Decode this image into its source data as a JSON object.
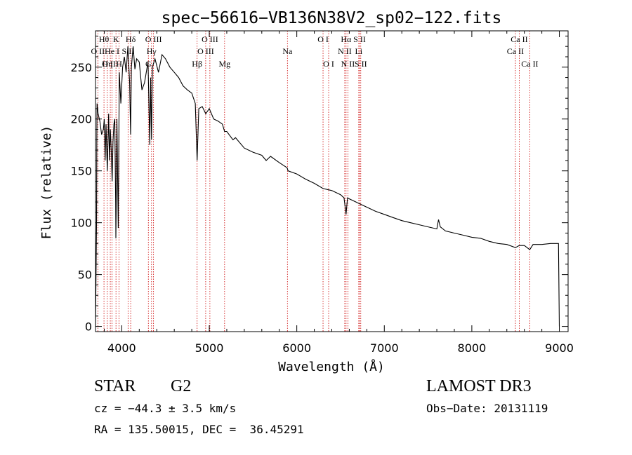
{
  "chart_data": {
    "type": "line",
    "title": "spec−56616−VB136N38V2_sp02−122.fits",
    "xlabel": "Wavelength (Å)",
    "ylabel": "Flux (relative)",
    "xlim": [
      3700,
      9100
    ],
    "ylim": [
      -5,
      285
    ],
    "xticks": [
      4000,
      5000,
      6000,
      7000,
      8000,
      9000
    ],
    "xtick_labels": [
      "4000",
      "5000",
      "6000",
      "7000",
      "8000",
      "9000"
    ],
    "yticks": [
      0,
      50,
      100,
      150,
      200,
      250
    ],
    "ytick_labels": [
      "0",
      "50",
      "100",
      "150",
      "200",
      "250"
    ],
    "series": [
      {
        "name": "flux",
        "x": [
          3700,
          3712,
          3715,
          3718,
          3730,
          3750,
          3770,
          3790,
          3800,
          3810,
          3820,
          3835,
          3850,
          3860,
          3870,
          3880,
          3890,
          3900,
          3910,
          3920,
          3930,
          3933,
          3936,
          3945,
          3960,
          3965,
          3968,
          3972,
          3990,
          4010,
          4030,
          4050,
          4070,
          4090,
          4101,
          4110,
          4130,
          4150,
          4170,
          4200,
          4230,
          4260,
          4300,
          4320,
          4330,
          4340,
          4350,
          4380,
          4420,
          4460,
          4500,
          4550,
          4600,
          4650,
          4700,
          4750,
          4800,
          4840,
          4861,
          4880,
          4920,
          4960,
          5000,
          5050,
          5100,
          5150,
          5175,
          5200,
          5270,
          5300,
          5400,
          5500,
          5600,
          5650,
          5700,
          5800,
          5890,
          5900,
          6000,
          6100,
          6200,
          6300,
          6400,
          6500,
          6540,
          6563,
          6580,
          6600,
          6700,
          6800,
          6900,
          7000,
          7100,
          7200,
          7300,
          7400,
          7500,
          7600,
          7620,
          7640,
          7700,
          7800,
          7900,
          8000,
          8100,
          8200,
          8300,
          8400,
          8498,
          8542,
          8600,
          8662,
          8700,
          8800,
          8900,
          8990,
          9000
        ],
        "y": [
          0,
          100,
          180,
          215,
          205,
          198,
          185,
          190,
          200,
          160,
          195,
          150,
          205,
          160,
          190,
          170,
          140,
          178,
          195,
          200,
          120,
          85,
          110,
          200,
          95,
          155,
          195,
          245,
          215,
          250,
          260,
          245,
          270,
          235,
          185,
          250,
          270,
          248,
          258,
          255,
          228,
          235,
          255,
          175,
          240,
          180,
          250,
          258,
          245,
          262,
          258,
          250,
          245,
          240,
          232,
          228,
          225,
          215,
          160,
          210,
          212,
          205,
          210,
          200,
          198,
          195,
          188,
          188,
          180,
          182,
          172,
          168,
          165,
          160,
          164,
          158,
          153,
          150,
          147,
          142,
          138,
          133,
          131,
          127,
          124,
          108,
          124,
          123,
          119,
          115,
          111,
          108,
          105,
          102,
          100,
          98,
          96,
          94,
          103,
          96,
          92,
          90,
          88,
          86,
          85,
          82,
          80,
          79,
          76,
          78,
          78,
          74,
          79,
          79,
          80,
          80,
          0
        ]
      }
    ],
    "lines": [
      {
        "label": "O II",
        "x": 3727,
        "row": 1
      },
      {
        "label": "Hθ",
        "x": 3797,
        "row": 0
      },
      {
        "label": "O III",
        "x": 3869,
        "row": 2
      },
      {
        "label": "Hη",
        "x": 3835,
        "row": 2
      },
      {
        "label": "He I",
        "x": 3889,
        "row": 1
      },
      {
        "label": "K",
        "x": 3934,
        "row": 0
      },
      {
        "label": "H",
        "x": 3969,
        "row": 2
      },
      {
        "label": "S II",
        "x": 4072,
        "row": 1
      },
      {
        "label": "Hδ",
        "x": 4102,
        "row": 0
      },
      {
        "label": "G",
        "x": 4304,
        "row": 2
      },
      {
        "label": "O III",
        "x": 4363,
        "row": 0
      },
      {
        "label": "Hγ",
        "x": 4340,
        "row": 1
      },
      {
        "label": "Hβ",
        "x": 4861,
        "row": 2
      },
      {
        "label": "O III",
        "x": 4959,
        "row": 1
      },
      {
        "label": "O III",
        "x": 5007,
        "row": 0
      },
      {
        "label": "Mg",
        "x": 5175,
        "row": 2
      },
      {
        "label": "Na",
        "x": 5893,
        "row": 1
      },
      {
        "label": "O I",
        "x": 6300,
        "row": 0
      },
      {
        "label": "O I",
        "x": 6364,
        "row": 2
      },
      {
        "label": "N II",
        "x": 6548,
        "row": 1
      },
      {
        "label": "Hα",
        "x": 6563,
        "row": 0
      },
      {
        "label": "N II",
        "x": 6584,
        "row": 2
      },
      {
        "label": "S II",
        "x": 6717,
        "row": 0
      },
      {
        "label": "Li",
        "x": 6708,
        "row": 1
      },
      {
        "label": "S II",
        "x": 6731,
        "row": 2
      },
      {
        "label": "Ca II",
        "x": 8498,
        "row": 1
      },
      {
        "label": "Ca II",
        "x": 8542,
        "row": 0
      },
      {
        "label": "Ca II",
        "x": 8662,
        "row": 2
      }
    ],
    "grid": false,
    "line_color": "#000000",
    "marker_color": "#cc0000"
  },
  "footer": {
    "object_class": "STAR",
    "subclass": "G2",
    "survey": "LAMOST DR3",
    "redshift": "cz = −44.3 ± 3.5 km/s",
    "obs_date": "Obs−Date: 20131119",
    "coords": "RA = 135.50015, DEC =  36.45291"
  }
}
